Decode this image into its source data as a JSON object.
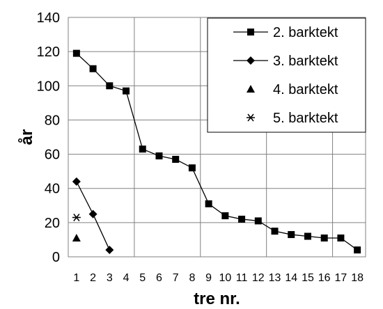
{
  "chart_data": {
    "type": "line",
    "xlabel": "tre nr.",
    "ylabel": "år",
    "ylim": [
      0,
      140
    ],
    "yticks": [
      0,
      20,
      40,
      60,
      80,
      100,
      120,
      140
    ],
    "xticks": [
      "1",
      "2",
      "3",
      "4",
      "5",
      "6",
      "7",
      "8",
      "9",
      "10",
      "11",
      "12",
      "13",
      "14",
      "15",
      "16",
      "17",
      "18"
    ],
    "grid": "vertical-and-horizontal",
    "legend_position": "top-right",
    "series": [
      {
        "name": "2. barktekt",
        "marker": "square",
        "line": true,
        "x": [
          1,
          2,
          3,
          4,
          5,
          6,
          7,
          8,
          9,
          10,
          11,
          12,
          13,
          14,
          15,
          16,
          17,
          18
        ],
        "y": [
          119,
          110,
          100,
          97,
          63,
          59,
          57,
          52,
          31,
          24,
          22,
          21,
          15,
          13,
          12,
          11,
          11,
          4
        ]
      },
      {
        "name": "3. barktekt",
        "marker": "diamond",
        "line": true,
        "x": [
          1,
          2,
          3
        ],
        "y": [
          44,
          25,
          4
        ]
      },
      {
        "name": "4. barktekt",
        "marker": "triangle",
        "line": false,
        "x": [
          1
        ],
        "y": [
          11
        ]
      },
      {
        "name": "5. barktekt",
        "marker": "star",
        "line": false,
        "x": [
          1
        ],
        "y": [
          23
        ]
      }
    ]
  }
}
